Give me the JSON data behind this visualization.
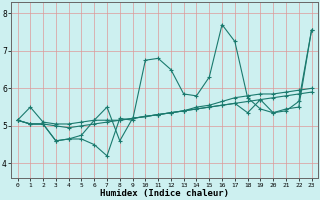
{
  "xlabel": "Humidex (Indice chaleur)",
  "ylabel": "",
  "xlim": [
    -0.5,
    23.5
  ],
  "ylim": [
    3.6,
    8.3
  ],
  "yticks": [
    4,
    5,
    6,
    7,
    8
  ],
  "xticks": [
    0,
    1,
    2,
    3,
    4,
    5,
    6,
    7,
    8,
    9,
    10,
    11,
    12,
    13,
    14,
    15,
    16,
    17,
    18,
    19,
    20,
    21,
    22,
    23
  ],
  "background_color": "#cdf0f0",
  "grid_color": "#dd9999",
  "line_color": "#1a7a6e",
  "series": [
    [
      5.15,
      5.5,
      5.1,
      5.05,
      5.05,
      5.1,
      5.15,
      5.15,
      5.15,
      5.2,
      5.25,
      5.3,
      5.35,
      5.4,
      5.5,
      5.55,
      5.65,
      5.75,
      5.8,
      5.85,
      5.85,
      5.9,
      5.95,
      6.0
    ],
    [
      5.15,
      5.05,
      5.05,
      4.6,
      4.65,
      4.65,
      4.5,
      4.2,
      5.2,
      5.15,
      6.75,
      6.8,
      6.5,
      5.85,
      5.8,
      6.3,
      7.7,
      7.25,
      5.75,
      5.45,
      5.35,
      5.4,
      5.65,
      7.55
    ],
    [
      5.15,
      5.05,
      5.05,
      5.0,
      4.95,
      5.0,
      5.05,
      5.1,
      5.15,
      5.2,
      5.25,
      5.3,
      5.35,
      5.4,
      5.45,
      5.5,
      5.55,
      5.6,
      5.65,
      5.7,
      5.75,
      5.8,
      5.85,
      5.9
    ],
    [
      5.15,
      5.05,
      5.05,
      4.6,
      4.65,
      4.75,
      5.15,
      5.5,
      4.6,
      5.2,
      5.25,
      5.3,
      5.35,
      5.4,
      5.45,
      5.5,
      5.55,
      5.6,
      5.35,
      5.7,
      5.35,
      5.45,
      5.5,
      7.55
    ]
  ]
}
